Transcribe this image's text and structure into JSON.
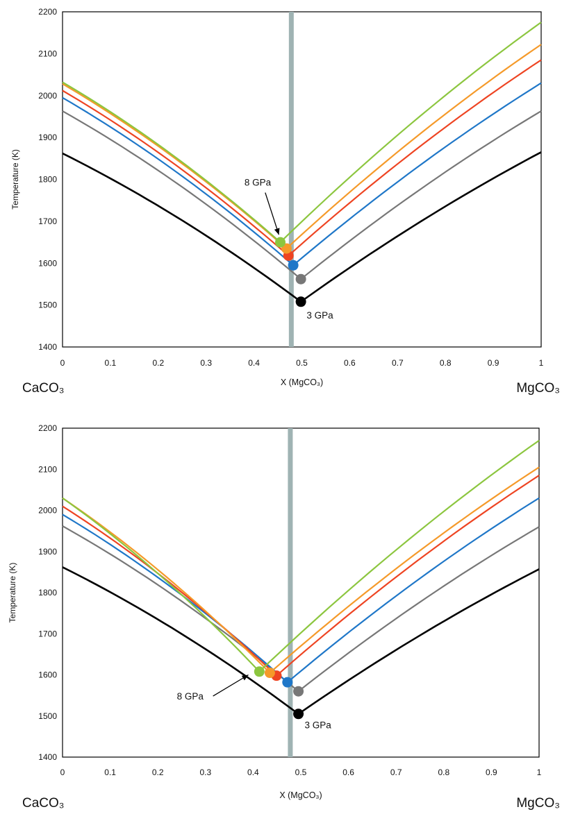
{
  "chart_data": [
    {
      "type": "line",
      "ylabel": "Temperature (K)",
      "xlabel": "X (MgCO₃)",
      "ylim": [
        1400,
        2200
      ],
      "xlim": [
        0,
        1
      ],
      "yticks": [
        "1400",
        "1500",
        "1600",
        "1700",
        "1800",
        "1900",
        "2000",
        "2100",
        "2200"
      ],
      "xticks": [
        "0",
        "0.1",
        "0.2",
        "0.3",
        "0.4",
        "0.5",
        "0.6",
        "0.7",
        "0.8",
        "0.9",
        "1"
      ],
      "left_label": "CaCO₃",
      "right_label": "MgCO₃",
      "vline_x": 0.478,
      "vline_color": "#9fb3b3",
      "annotations": [
        {
          "text": "8 GPa",
          "x": 0.38,
          "y": 1785,
          "arrow_to": [
            0.452,
            1668
          ]
        },
        {
          "text": "3 GPa",
          "x": 0.51,
          "y": 1468
        }
      ],
      "series": [
        {
          "color": "#000000",
          "y0": 1862,
          "eutectic": [
            0.498,
            1508
          ],
          "y1": 1865
        },
        {
          "color": "#777777",
          "y0": 1963,
          "eutectic": [
            0.498,
            1562
          ],
          "y1": 1963
        },
        {
          "color": "#1f77c8",
          "y0": 1995,
          "eutectic": [
            0.482,
            1595
          ],
          "y1": 2030
        },
        {
          "color": "#ee4422",
          "y0": 2012,
          "eutectic": [
            0.472,
            1618
          ],
          "y1": 2085
        },
        {
          "color": "#f59a2a",
          "y0": 2028,
          "eutectic": [
            0.468,
            1635
          ],
          "y1": 2122
        },
        {
          "color": "#8cc63f",
          "y0": 2032,
          "eutectic": [
            0.455,
            1650
          ],
          "y1": 2175
        }
      ]
    },
    {
      "type": "line",
      "ylabel": "Temperature (K)",
      "xlabel": "X (MgCO₃)",
      "ylim": [
        1400,
        2200
      ],
      "xlim": [
        0,
        1
      ],
      "yticks": [
        "1400",
        "1500",
        "1600",
        "1700",
        "1800",
        "1900",
        "2000",
        "2100",
        "2200"
      ],
      "xticks": [
        "0",
        "0.1",
        "0.2",
        "0.3",
        "0.4",
        "0.5",
        "0.6",
        "0.7",
        "0.8",
        "0.9",
        "1"
      ],
      "left_label": "CaCO₃",
      "right_label": "MgCO₃",
      "vline_x": 0.478,
      "vline_color": "#9fb3b3",
      "annotations": [
        {
          "text": "8 GPa",
          "x": 0.24,
          "y": 1540,
          "arrow_to": [
            0.39,
            1600
          ]
        },
        {
          "text": "3 GPa",
          "x": 0.508,
          "y": 1470
        }
      ],
      "series": [
        {
          "color": "#000000",
          "y0": 1862,
          "eutectic": [
            0.495,
            1505
          ],
          "y1": 1857
        },
        {
          "color": "#777777",
          "y0": 1962,
          "eutectic": [
            0.495,
            1560
          ],
          "y1": 1960
        },
        {
          "color": "#1f77c8",
          "y0": 1990,
          "eutectic": [
            0.472,
            1582
          ],
          "y1": 2030
        },
        {
          "color": "#ee4422",
          "y0": 2010,
          "eutectic": [
            0.449,
            1598
          ],
          "y1": 2085
        },
        {
          "color": "#f59a2a",
          "y0": 2030,
          "eutectic": [
            0.435,
            1605
          ],
          "y1": 2105
        },
        {
          "color": "#8cc63f",
          "y0": 2030,
          "eutectic": [
            0.413,
            1608
          ],
          "y1": 2170
        }
      ]
    }
  ]
}
